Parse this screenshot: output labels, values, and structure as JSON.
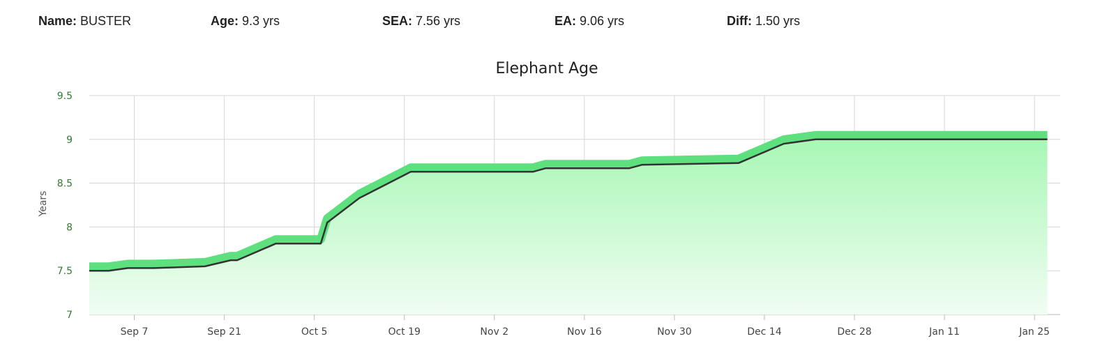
{
  "header": {
    "name": {
      "label": "Name:",
      "value": "BUSTER"
    },
    "age": {
      "label": "Age:",
      "value": "9.3 yrs"
    },
    "sea": {
      "label": "SEA:",
      "value": "7.56 yrs"
    },
    "ea": {
      "label": "EA:",
      "value": "9.06 yrs"
    },
    "diff": {
      "label": "Diff:",
      "value": "1.50 yrs"
    }
  },
  "chart_data": {
    "type": "area",
    "title": "Elephant Age",
    "xlabel": "",
    "ylabel": "Years",
    "ylim": [
      7,
      9.5
    ],
    "yticks": [
      7,
      7.5,
      8,
      8.5,
      9,
      9.5
    ],
    "ytick_labels": [
      "7",
      "7.5",
      "8",
      "8.5",
      "9",
      "9.5"
    ],
    "xlim": [
      "Aug 31",
      "Jan 29"
    ],
    "xticks": [
      "Sep 7",
      "Sep 21",
      "Oct 5",
      "Oct 19",
      "Nov 2",
      "Nov 16",
      "Nov 30",
      "Dec 14",
      "Dec 28",
      "Jan 11",
      "Jan 25"
    ],
    "grid": true,
    "colors": {
      "area_top": "#a8f7b5",
      "area_bottom": "#f1fdf3",
      "band": "#5ee07e",
      "line": "#333333"
    },
    "series": [
      {
        "x": [
          "Aug 31",
          "Sep 3",
          "Sep 6",
          "Sep 10",
          "Sep 18",
          "Sep 22",
          "Sep 23",
          "Sep 29",
          "Oct 6",
          "Oct 7",
          "Oct 12",
          "Oct 20",
          "Nov 8",
          "Nov 10",
          "Nov 23",
          "Nov 25",
          "Dec 10",
          "Dec 17",
          "Dec 22",
          "Jan 27"
        ],
        "values": [
          7.5,
          7.5,
          7.53,
          7.53,
          7.55,
          7.62,
          7.62,
          7.81,
          7.81,
          8.05,
          8.33,
          8.63,
          8.63,
          8.67,
          8.67,
          8.71,
          8.73,
          8.95,
          9.0,
          9.0
        ]
      }
    ]
  }
}
